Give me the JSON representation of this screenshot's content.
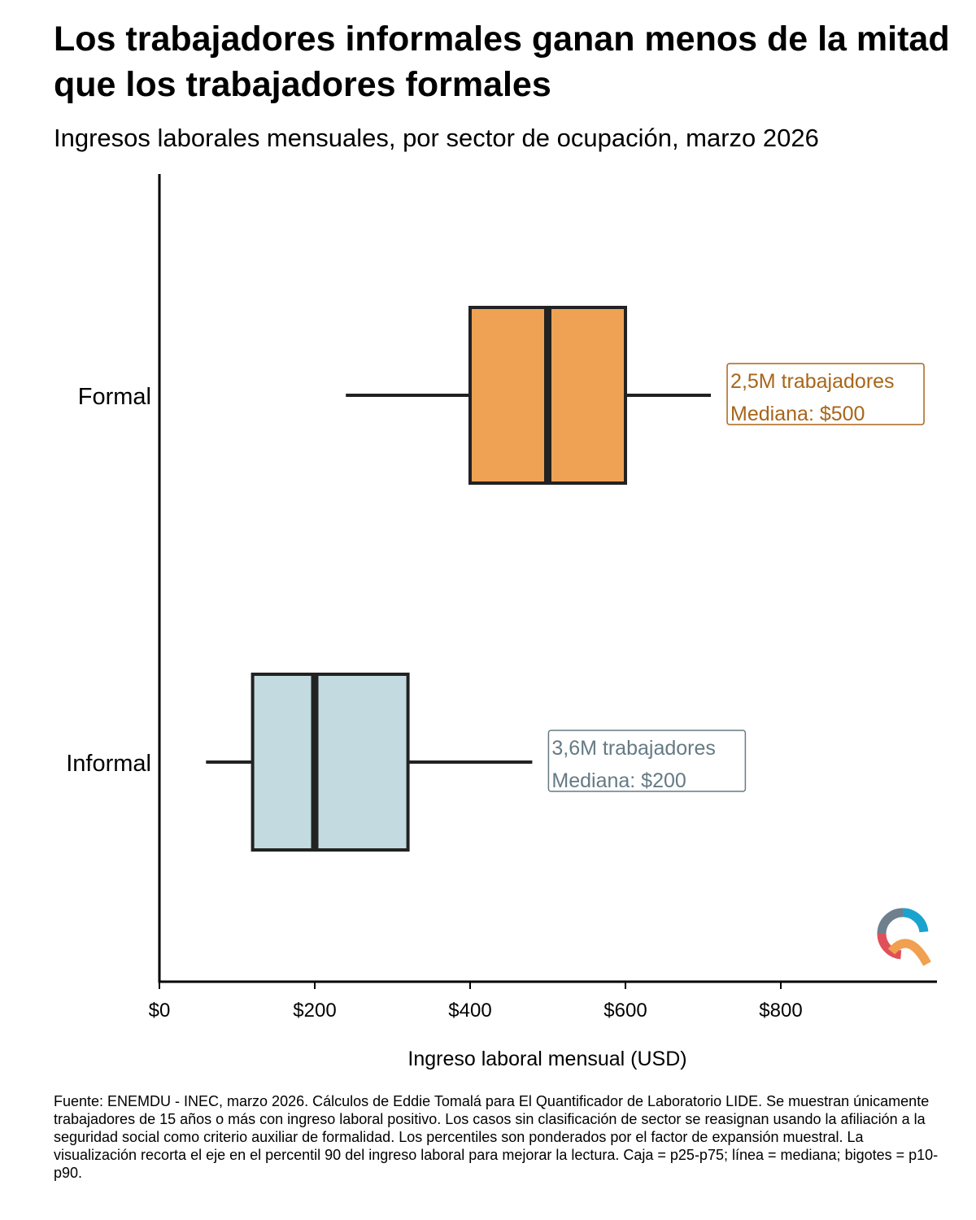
{
  "chart_data": {
    "type": "boxplot",
    "orientation": "horizontal",
    "title": "Los trabajadores informales ganan menos de la mitad que los trabajadores formales",
    "subtitle": "Ingresos laborales mensuales, por sector de ocupación, marzo 2026",
    "xlabel": "Ingreso laboral mensual (USD)",
    "ylabel": "",
    "xlim": [
      0,
      1000
    ],
    "xticks": [
      0,
      200,
      400,
      600,
      800
    ],
    "xtick_labels": [
      "$0",
      "$200",
      "$400",
      "$600",
      "$800"
    ],
    "grid": false,
    "legend": "none",
    "categories": [
      "Formal",
      "Informal"
    ],
    "series": [
      {
        "category": "Formal",
        "p10": 240,
        "p25": 400,
        "median": 500,
        "p75": 600,
        "p90": 710,
        "color": "#EFA253",
        "label_color": "#A8651A",
        "annotation": [
          "2,5M trabajadores",
          "Mediana: $500"
        ]
      },
      {
        "category": "Informal",
        "p10": 60,
        "p25": 120,
        "median": 200,
        "p75": 320,
        "p90": 480,
        "color": "#C3DBE0",
        "label_color": "#657A84",
        "annotation": [
          "3,6M trabajadores",
          "Mediana: $200"
        ]
      }
    ],
    "caption": "Fuente: ENEMDU - INEC, marzo 2026. Cálculos de Eddie Tomalá para El Quantificador de Laboratorio LIDE. Se muestran únicamente trabajadores de 15 años o más con ingreso laboral positivo. Los casos sin clasificación de sector se reasignan usando la afiliación a la seguridad social como criterio auxiliar de formalidad. Los percentiles son ponderados por el factor de expansión muestral. La visualización recorta el eje en el percentil 90 del ingreso laboral para mejorar la lectura. Caja = p25-p75; línea = mediana; bigotes = p10-p90.",
    "logo_colors": [
      "#6E7F8E",
      "#1AA3CF",
      "#E0505A",
      "#F0A050"
    ]
  }
}
